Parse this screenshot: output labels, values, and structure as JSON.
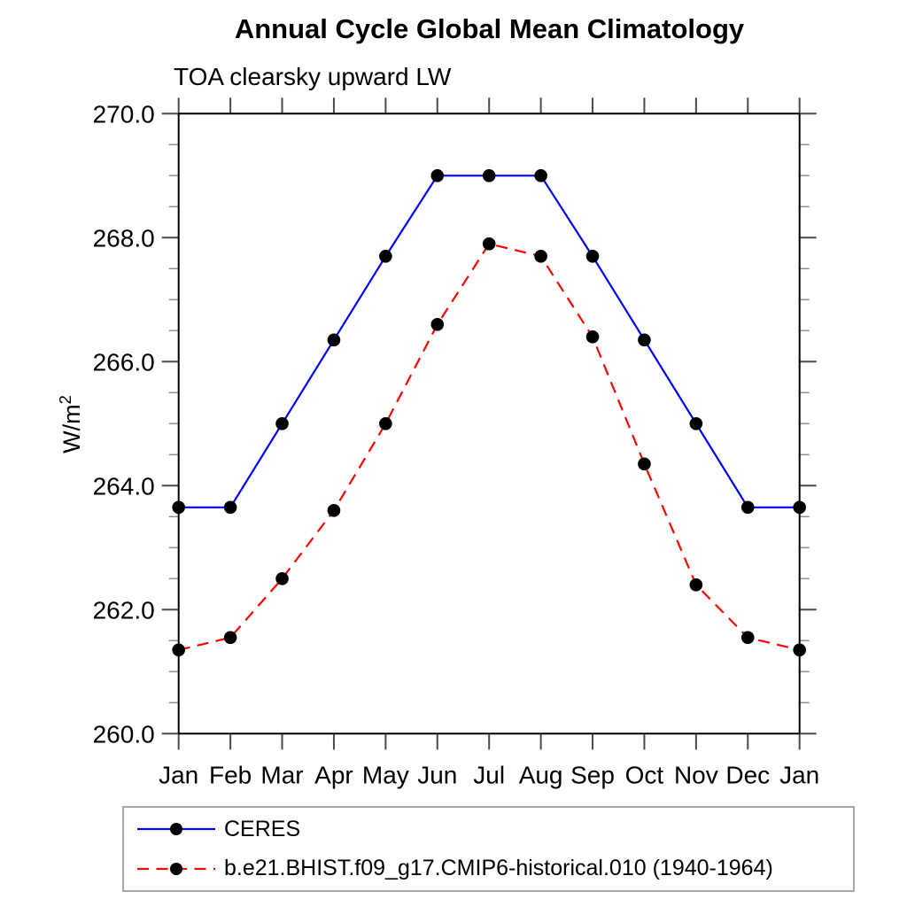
{
  "title": "Annual Cycle Global Mean Climatology",
  "subtitle": "TOA clearsky upward LW",
  "y_axis": {
    "label_base": "W/m",
    "label_sup": "2"
  },
  "chart_data": {
    "type": "line",
    "x_categories": [
      "Jan",
      "Feb",
      "Mar",
      "Apr",
      "May",
      "Jun",
      "Jul",
      "Aug",
      "Sep",
      "Oct",
      "Nov",
      "Dec",
      "Jan"
    ],
    "xlabel": "",
    "ylabel": "W/m2",
    "ylim": [
      260.0,
      270.0
    ],
    "ytick_major_step": 2.0,
    "ytick_minor_step": 0.5,
    "ytick_labels": [
      "260.0",
      "262.0",
      "264.0",
      "266.0",
      "268.0",
      "270.0"
    ],
    "grid": false,
    "legend_position": "bottom-left",
    "marker": {
      "shape": "circle",
      "color": "#000000",
      "radius": 7.3
    },
    "series": [
      {
        "name": "CERES",
        "color": "#0000ff",
        "line_style": "solid",
        "values": [
          263.65,
          263.65,
          265.0,
          266.35,
          267.7,
          269.0,
          269.0,
          269.0,
          267.7,
          266.35,
          265.0,
          263.65,
          263.65
        ]
      },
      {
        "name": "b.e21.BHIST.f09_g17.CMIP6-historical.010 (1940-1964)",
        "color": "#ff0000",
        "line_style": "dashed",
        "values": [
          261.35,
          261.55,
          262.5,
          263.6,
          265.0,
          266.6,
          267.9,
          267.7,
          266.4,
          264.35,
          262.4,
          261.55,
          261.35
        ]
      }
    ],
    "axis_colors": {
      "axis_line": "#000000",
      "major_tick": "#4a4a4a",
      "minor_tick": "#8f8f8f"
    }
  }
}
